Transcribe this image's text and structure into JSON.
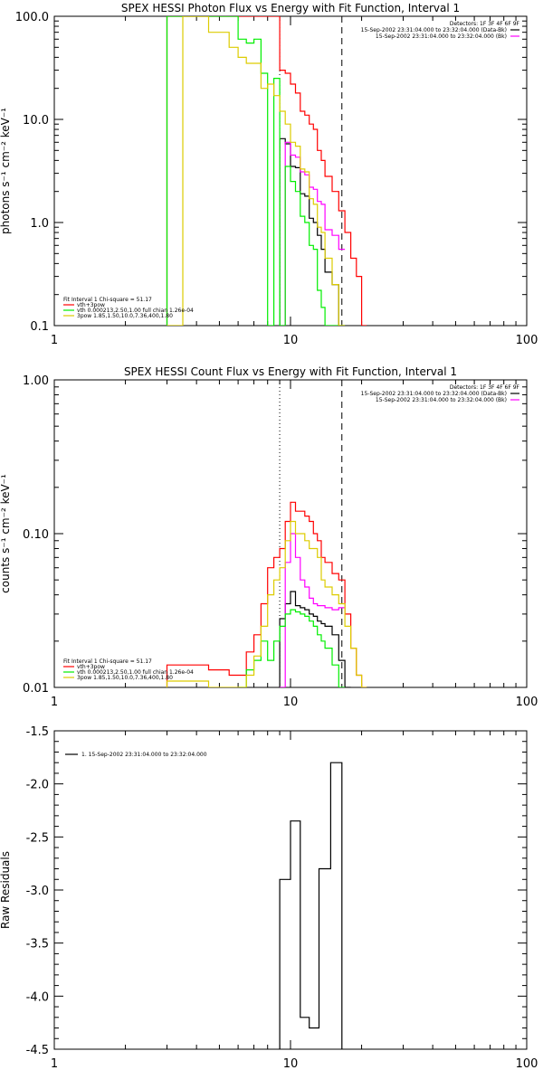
{
  "chart_data": [
    {
      "type": "line",
      "title": "SPEX HESSI Photon Flux vs Energy with Fit Function, Interval 1",
      "ylabel": "photons s⁻¹ cm⁻² keV⁻¹",
      "xlabel": "",
      "xscale": "log",
      "yscale": "log",
      "xlim": [
        1,
        100
      ],
      "ylim": [
        0.1,
        100
      ],
      "x_ticks": [
        "1",
        "10",
        "100"
      ],
      "y_ticks": [
        "0.1",
        "1.0",
        "10.0",
        "100.0"
      ],
      "vlines": [
        {
          "x": 9.0,
          "style": "dotted"
        },
        {
          "x": 16.5,
          "style": "dashed"
        }
      ],
      "top_legend": {
        "lines": [
          {
            "text": "Detectors: 1F 3F 4F 6F 9F",
            "color": ""
          },
          {
            "text": "15-Sep-2002 23:31:04.000 to 23:32:04.000 (Data-Bk)",
            "color": "#000000"
          },
          {
            "text": "15-Sep-2002 23:31:04.000 to 23:32:04.000 (Bk)",
            "color": "#ff00ff"
          }
        ]
      },
      "fit_legend": {
        "header": "Fit Interval 1    Chi-square = 51.17",
        "lines": [
          {
            "text": "vth+3pow",
            "color": "#ff0000"
          },
          {
            "text": "vth 0.000213,2.50,1.00  full chian 1.26e-04",
            "color": "#00ee00"
          },
          {
            "text": "3pow 1.85,1.50,10.0,7.36,400,1.80",
            "color": "#ddcc00"
          }
        ]
      },
      "edges": [
        3,
        3.5,
        4,
        4.5,
        5,
        5.5,
        6,
        6.5,
        7,
        7.5,
        8,
        8.5,
        9,
        9.5,
        10,
        10.5,
        11,
        11.5,
        12,
        12.5,
        13,
        13.5,
        14,
        15,
        16,
        17,
        18,
        19,
        20,
        21
      ],
      "series": [
        {
          "name": "",
          "color": "#ff0000",
          "values": [
            100,
            100,
            100,
            100,
            100,
            100,
            100,
            100,
            100,
            100,
            100,
            100,
            30,
            28,
            22,
            18,
            12,
            11,
            9,
            8,
            5,
            4,
            2.8,
            2,
            1.3,
            0.8,
            0.45,
            0.3,
            0.1
          ]
        },
        {
          "name": "",
          "color": "#000000",
          "values": [
            null,
            null,
            null,
            null,
            null,
            null,
            null,
            null,
            null,
            null,
            null,
            null,
            6.5,
            5.8,
            3.5,
            3.4,
            1.9,
            1.8,
            1.1,
            1.0,
            0.75,
            0.55,
            0.33,
            0.25,
            0.1,
            null,
            null,
            null,
            null
          ]
        },
        {
          "name": "",
          "color": "#ff00ff",
          "values": [
            null,
            null,
            null,
            null,
            null,
            null,
            null,
            null,
            null,
            null,
            null,
            null,
            0.1,
            6.0,
            4.5,
            4.3,
            3.1,
            2.9,
            2.2,
            2.1,
            1.6,
            1.5,
            0.85,
            0.75,
            0.55,
            null,
            null,
            null,
            null
          ]
        },
        {
          "name": "",
          "color": "#00ee00",
          "values": [
            100,
            100,
            100,
            100,
            100,
            100,
            60,
            55,
            60,
            28,
            0.1,
            25,
            0.1,
            3.5,
            2.5,
            2.0,
            1.15,
            1.0,
            0.6,
            0.55,
            0.22,
            0.15,
            0.1,
            0.1,
            0.1,
            null,
            null,
            null,
            null
          ]
        },
        {
          "name": "",
          "color": "#ddcc00",
          "values": [
            0.1,
            100,
            100,
            70,
            70,
            50,
            40,
            35,
            35,
            20,
            22,
            17,
            12,
            9,
            6,
            5.5,
            3.3,
            3.1,
            1.7,
            1.5,
            0.9,
            0.8,
            0.45,
            0.25,
            0.1,
            null,
            null,
            null,
            null
          ]
        }
      ]
    },
    {
      "type": "line",
      "title": "SPEX HESSI Count Flux vs Energy with Fit Function, Interval 1",
      "ylabel": "counts s⁻¹ cm⁻² keV⁻¹",
      "xlabel": "",
      "xscale": "log",
      "yscale": "log",
      "xlim": [
        1,
        100
      ],
      "ylim": [
        0.01,
        1
      ],
      "x_ticks": [
        "1",
        "10",
        "100"
      ],
      "y_ticks": [
        "0.01",
        "0.10",
        "1.00"
      ],
      "vlines": [
        {
          "x": 9.0,
          "style": "dotted"
        },
        {
          "x": 16.5,
          "style": "dashed"
        }
      ],
      "top_legend": {
        "lines": [
          {
            "text": "Detectors: 1F 3F 4F 6F 9F",
            "color": ""
          },
          {
            "text": "15-Sep-2002 23:31:04.000 to 23:32:04.000 (Data-Bk)",
            "color": "#000000"
          },
          {
            "text": "15-Sep-2002 23:31:04.000 to 23:32:04.000 (Bk)",
            "color": "#ff00ff"
          }
        ]
      },
      "fit_legend": {
        "header": "Fit Interval 1    Chi-square = 51.17",
        "lines": [
          {
            "text": "vth+3pow",
            "color": "#ff0000"
          },
          {
            "text": "vth 0.000213,2.50,1.00  full chian 1.26e-04",
            "color": "#00ee00"
          },
          {
            "text": "3pow 1.85,1.50,10.0,7.36,400,1.80",
            "color": "#ddcc00"
          }
        ]
      },
      "edges": [
        3,
        3.5,
        4,
        4.5,
        5,
        5.5,
        6,
        6.5,
        7,
        7.5,
        8,
        8.5,
        9,
        9.5,
        10,
        10.5,
        11,
        11.5,
        12,
        12.5,
        13,
        13.5,
        14,
        15,
        16,
        17,
        18,
        19,
        20,
        21
      ],
      "series": [
        {
          "name": "",
          "color": "#ff0000",
          "values": [
            0.014,
            0.014,
            0.014,
            0.013,
            0.013,
            0.012,
            0.012,
            0.017,
            0.022,
            0.035,
            0.06,
            0.07,
            0.08,
            0.12,
            0.16,
            0.14,
            0.14,
            0.13,
            0.12,
            0.1,
            0.09,
            0.07,
            0.065,
            0.055,
            0.05,
            0.03,
            0.018,
            0.012,
            0.01
          ]
        },
        {
          "name": "",
          "color": "#000000",
          "values": [
            null,
            null,
            null,
            null,
            null,
            null,
            null,
            null,
            null,
            null,
            null,
            null,
            0.028,
            0.035,
            0.042,
            0.034,
            0.033,
            0.032,
            0.03,
            0.029,
            0.027,
            0.026,
            0.025,
            0.022,
            0.015,
            0.01,
            null,
            null,
            null
          ]
        },
        {
          "name": "",
          "color": "#ff00ff",
          "values": [
            null,
            null,
            null,
            null,
            null,
            null,
            null,
            null,
            null,
            null,
            null,
            null,
            0.01,
            0.065,
            0.1,
            0.07,
            0.05,
            0.045,
            0.038,
            0.035,
            0.034,
            0.034,
            0.033,
            0.032,
            0.033,
            null,
            null,
            null,
            null
          ]
        },
        {
          "name": "",
          "color": "#00ee00",
          "values": [
            null,
            null,
            null,
            null,
            null,
            null,
            0.01,
            0.013,
            0.015,
            0.02,
            0.015,
            0.02,
            0.025,
            0.03,
            0.032,
            0.031,
            0.03,
            0.029,
            0.027,
            0.025,
            0.022,
            0.02,
            0.018,
            0.014,
            0.01,
            null,
            null,
            null,
            null
          ]
        },
        {
          "name": "",
          "color": "#ddcc00",
          "values": [
            0.011,
            0.011,
            0.011,
            0.01,
            0.01,
            0.01,
            0.01,
            0.012,
            0.016,
            0.025,
            0.04,
            0.05,
            0.06,
            0.09,
            0.12,
            0.1,
            0.1,
            0.09,
            0.08,
            0.08,
            0.07,
            0.05,
            0.045,
            0.04,
            0.035,
            0.025,
            0.018,
            0.012,
            0.01
          ]
        }
      ]
    },
    {
      "type": "line",
      "title": "",
      "ylabel": "Raw Residuals",
      "xlabel": "",
      "xscale": "log",
      "yscale": "linear",
      "xlim": [
        1,
        100
      ],
      "ylim": [
        -4.5,
        -1.5
      ],
      "x_ticks": [
        "1",
        "10",
        "100"
      ],
      "y_ticks": [
        "-4.5",
        "-4.0",
        "-3.5",
        "-3.0",
        "-2.5",
        "-2.0",
        "-1.5"
      ],
      "legend_line": "1. 15-Sep-2002 23:31:04.000 to 23:32:04.000",
      "edges": [
        9.0,
        10.0,
        11.0,
        12.0,
        13.2,
        14.8,
        16.5
      ],
      "series": [
        {
          "name": "1. 15-Sep-2002 23:31:04.000 to 23:32:04.000",
          "color": "#000000",
          "values": [
            -2.9,
            -2.35,
            -4.2,
            -4.3,
            -2.8,
            -1.8
          ]
        }
      ]
    }
  ]
}
